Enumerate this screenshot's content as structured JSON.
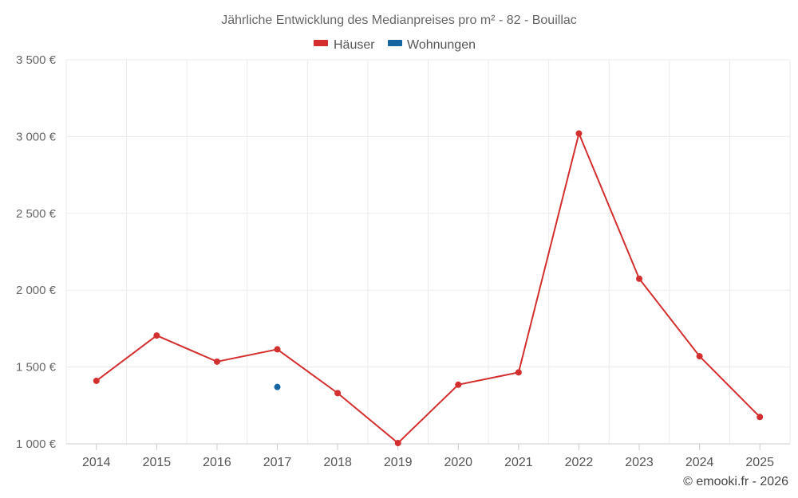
{
  "chart_data": {
    "type": "line",
    "title": "Jährliche Entwicklung des Medianpreises pro m² - 82 - Bouillac",
    "categories": [
      "2014",
      "2015",
      "2016",
      "2017",
      "2018",
      "2019",
      "2020",
      "2021",
      "2022",
      "2023",
      "2024",
      "2025"
    ],
    "series": [
      {
        "name": "Häuser",
        "color": "#d32f2f",
        "values": [
          1410,
          1705,
          1535,
          1615,
          1330,
          1005,
          1385,
          1465,
          3020,
          2075,
          1570,
          1175
        ]
      },
      {
        "name": "Wohnungen",
        "color": "#1565a0",
        "values": [
          null,
          null,
          null,
          1370,
          null,
          null,
          null,
          null,
          null,
          null,
          null,
          null
        ]
      }
    ],
    "ylim": [
      1000,
      3500
    ],
    "yticks": [
      1000,
      1500,
      2000,
      2500,
      3000,
      3500
    ],
    "ytick_labels": [
      "1 000 €",
      "1 500 €",
      "2 000 €",
      "2 500 €",
      "3 000 €",
      "3 500 €"
    ],
    "grid": true,
    "legend_position": "top-center"
  },
  "credit": "© emooki.fr - 2026"
}
